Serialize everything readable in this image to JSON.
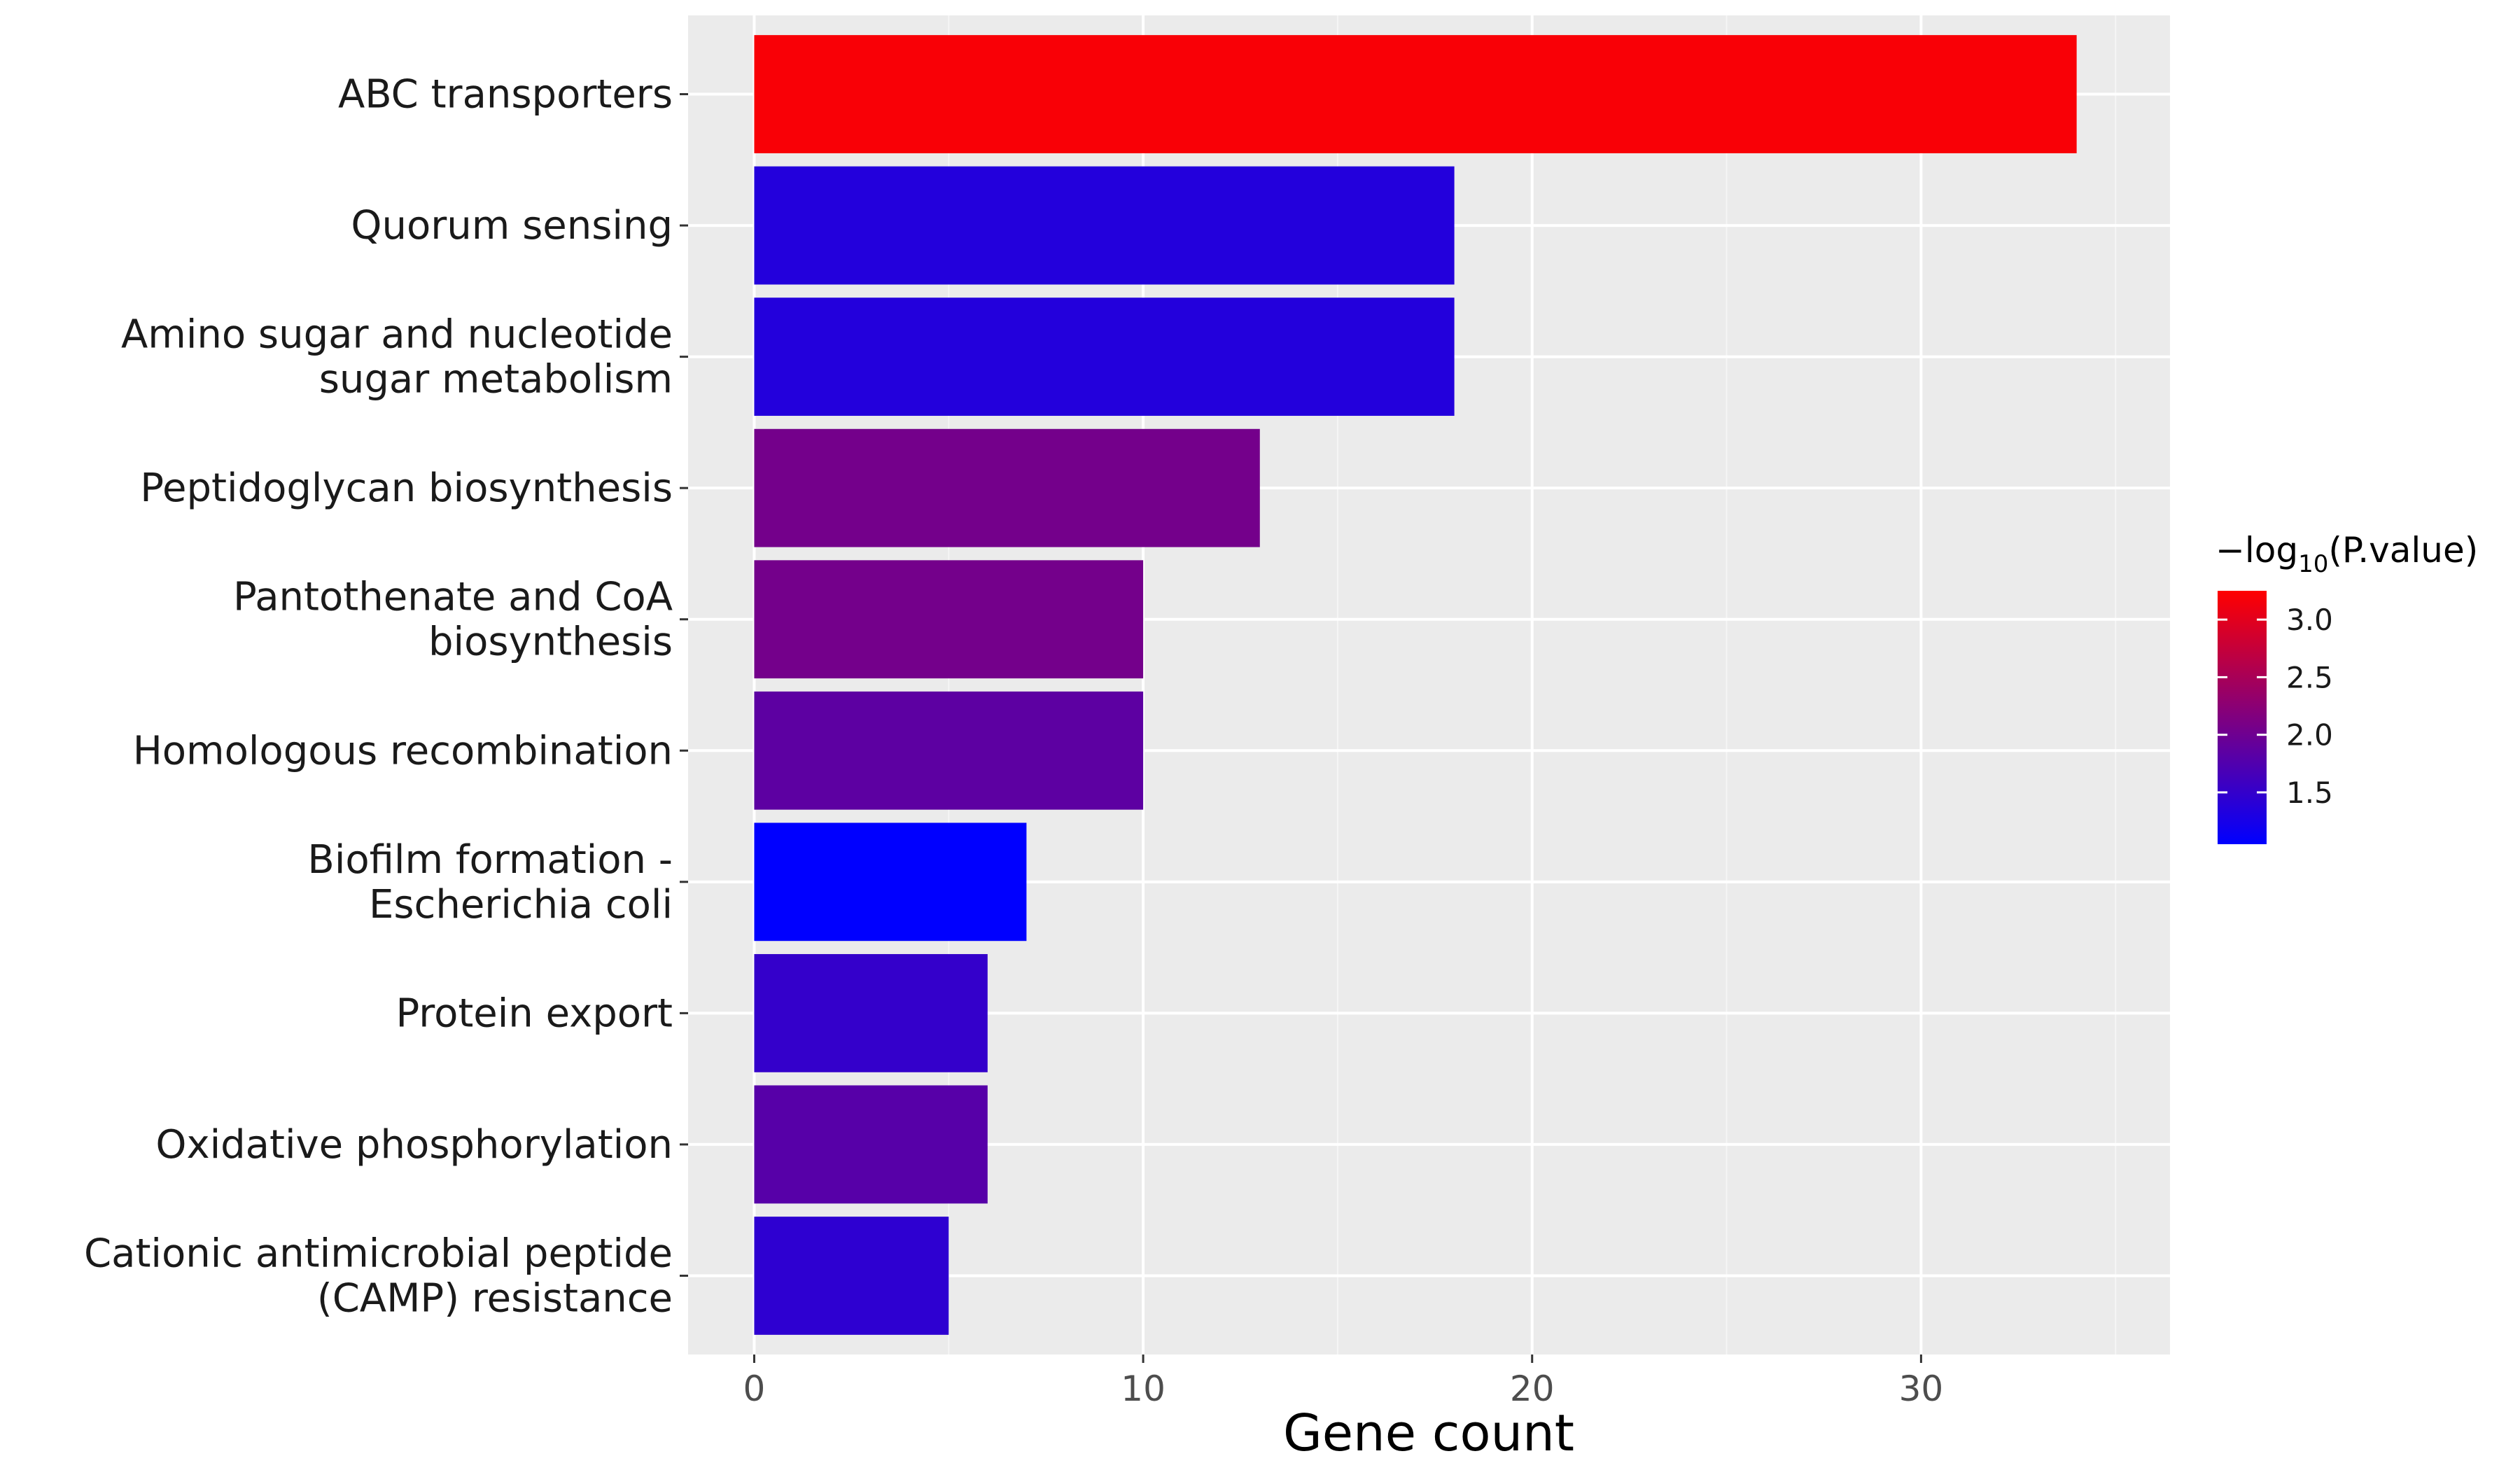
{
  "chart_data": {
    "type": "bar",
    "orientation": "horizontal",
    "categories": [
      "ABC transporters",
      "Quorum sensing",
      "Amino sugar and nucleotide\nsugar metabolism",
      "Peptidoglycan biosynthesis",
      "Pantothenate and CoA\nbiosynthesis",
      "Homologous recombination",
      "Biofilm formation -\nEscherichia coli",
      "Protein export",
      "Oxidative phosphorylation",
      "Cationic antimicrobial peptide\n(CAMP) resistance"
    ],
    "values": [
      34,
      18,
      18,
      13,
      10,
      10,
      7,
      6,
      6,
      5
    ],
    "color_values": [
      3.2,
      1.35,
      1.35,
      2.05,
      2.05,
      1.85,
      1.05,
      1.5,
      1.8,
      1.45
    ],
    "xlabel": "Gene count",
    "ylabel": "",
    "xlim": [
      -1.7,
      36.4
    ],
    "xticks": [
      0,
      10,
      20,
      30
    ],
    "grid": true,
    "legend": {
      "title": "−log10(P.value)",
      "title_main": "−log",
      "title_sub": "10",
      "title_rest": "(P.value)",
      "position": "right",
      "range": [
        1.05,
        3.25
      ],
      "ticks": [
        3.0,
        2.5,
        2.0,
        1.5
      ],
      "low_color": "#0000ff",
      "high_color": "#ff0000"
    },
    "colors": {
      "panel_background": "#ebebeb",
      "grid_major": "#ffffff",
      "grid_minor": "#f5f5f5"
    }
  }
}
